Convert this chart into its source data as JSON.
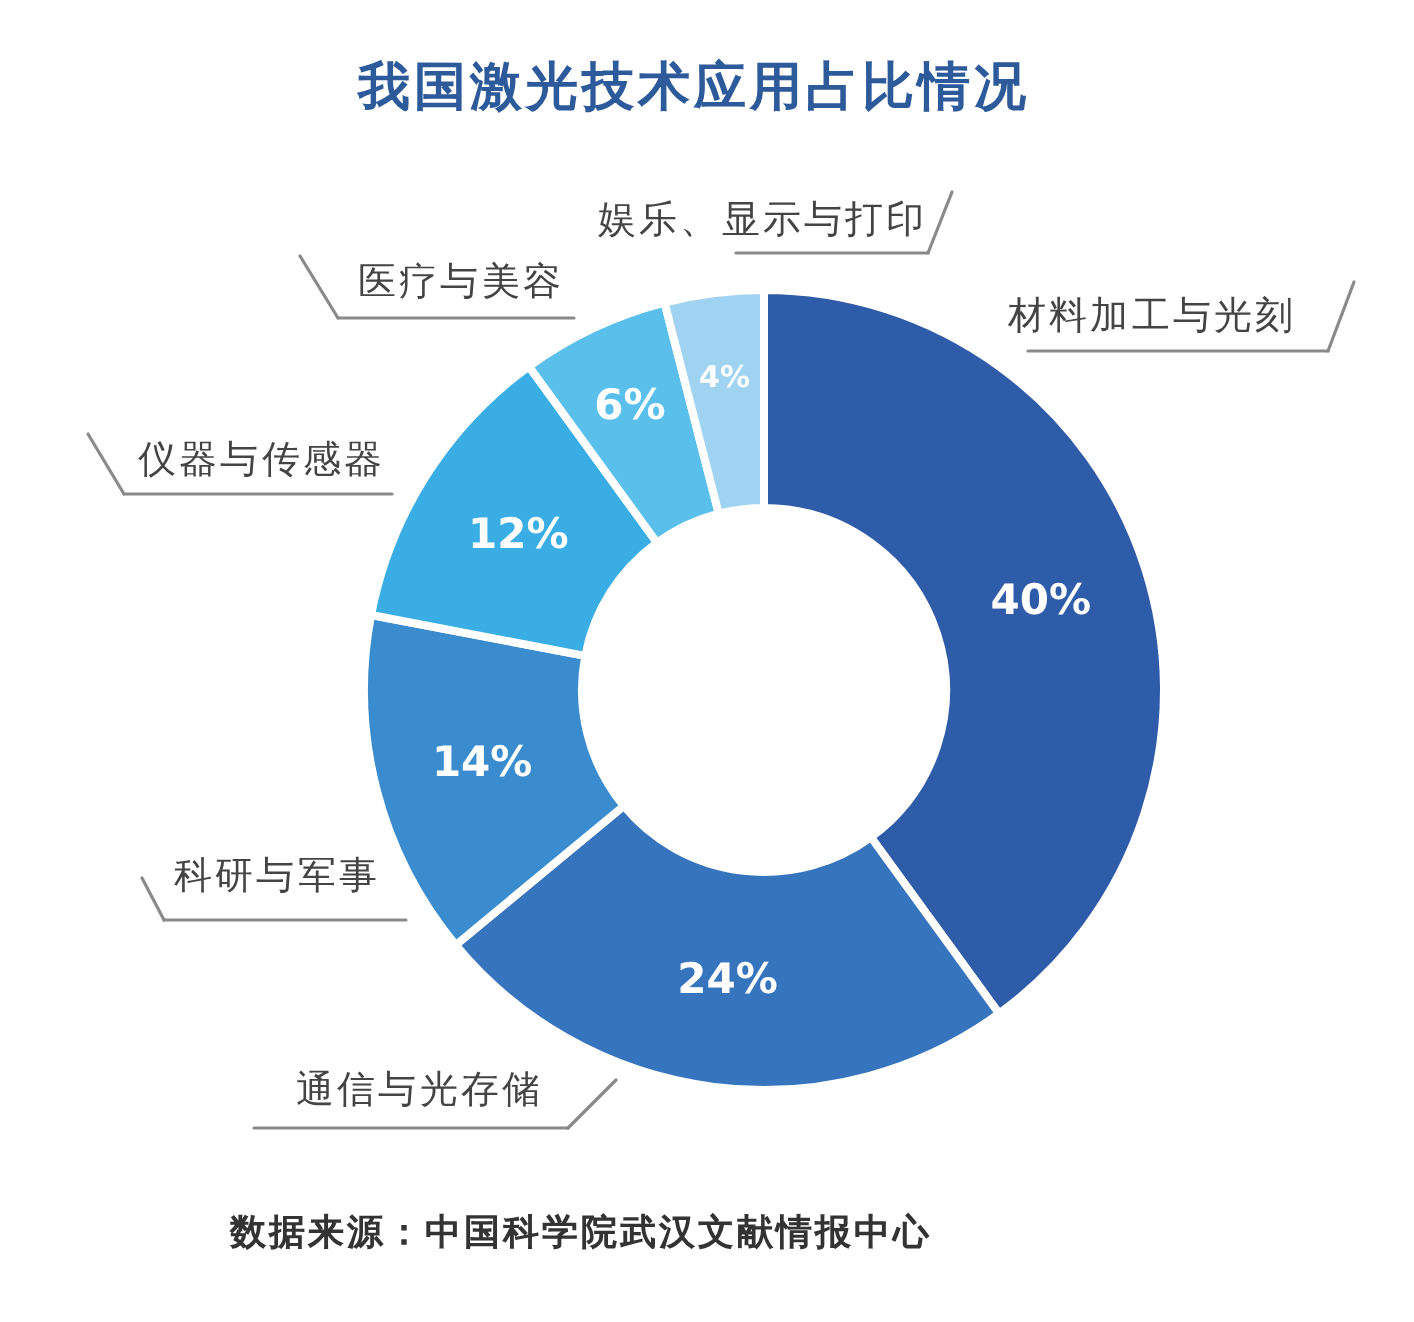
{
  "chart_data": {
    "type": "donut",
    "title": "我国激光技术应用占比情况",
    "categories": [
      "材料加工与光刻",
      "通信与光存储",
      "科研与军事",
      "仪器与传感器",
      "医疗与美容",
      "娱乐、显示与打印"
    ],
    "values": [
      40,
      24,
      14,
      12,
      6,
      4
    ],
    "value_labels": [
      "40%",
      "24%",
      "14%",
      "12%",
      "6%",
      "4%"
    ],
    "colors": [
      "#2f5ca9",
      "#3674bd",
      "#3b8ccf",
      "#3aaee4",
      "#5bbfec",
      "#9fd3f1"
    ],
    "annotations": [
      "数据来源：中国科学院武汉文献情报中心"
    ]
  }
}
